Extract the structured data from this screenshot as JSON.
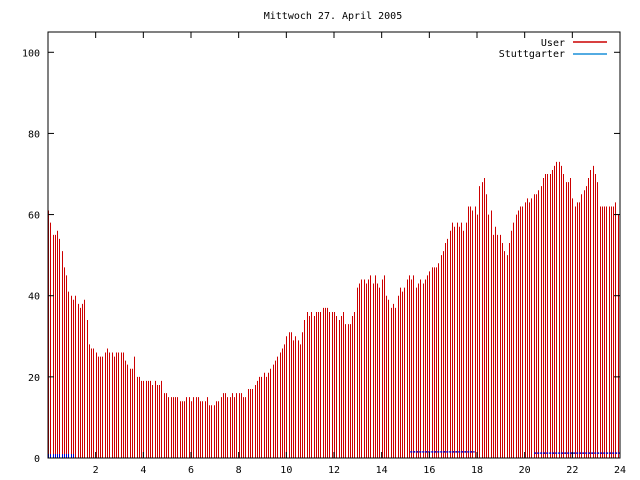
{
  "chart_data": {
    "type": "bar",
    "title": "Mittwoch 27. April 2005",
    "xlim": [
      0,
      24
    ],
    "ylim": [
      0,
      105
    ],
    "x_ticks": [
      2,
      4,
      6,
      8,
      10,
      12,
      14,
      16,
      18,
      20,
      22,
      24
    ],
    "y_ticks": [
      0,
      20,
      40,
      60,
      80,
      100
    ],
    "x_step_hours": 0.0833,
    "legend_position": "top-right",
    "grid": false,
    "series": [
      {
        "name": "User",
        "color": "#cc0000",
        "values": [
          61,
          58,
          55,
          55,
          56,
          54,
          51,
          47,
          45,
          41,
          40,
          39,
          40,
          38,
          37,
          38,
          39,
          34,
          28,
          27,
          27,
          26,
          25,
          25,
          25,
          26,
          27,
          26,
          26,
          25,
          26,
          26,
          26,
          26,
          24,
          23,
          22,
          22,
          25,
          20,
          20,
          19,
          19,
          19,
          19,
          19,
          18,
          19,
          18,
          18,
          19,
          16,
          16,
          15,
          15,
          15,
          15,
          15,
          14,
          14,
          14,
          15,
          15,
          14,
          15,
          15,
          15,
          14,
          14,
          14,
          15,
          13,
          13,
          13,
          14,
          14,
          15,
          16,
          16,
          15,
          15,
          16,
          15,
          16,
          16,
          16,
          15,
          15,
          17,
          17,
          17,
          18,
          19,
          20,
          20,
          21,
          20,
          21,
          22,
          23,
          24,
          25,
          26,
          27,
          28,
          30,
          31,
          31,
          29,
          30,
          29,
          28,
          31,
          34,
          36,
          35,
          36,
          35,
          36,
          36,
          36,
          37,
          37,
          37,
          36,
          36,
          36,
          35,
          34,
          35,
          36,
          33,
          33,
          33,
          35,
          36,
          42,
          43,
          44,
          44,
          43,
          44,
          45,
          43,
          45,
          43,
          42,
          44,
          45,
          40,
          39,
          37,
          38,
          37,
          40,
          42,
          41,
          42,
          44,
          45,
          44,
          45,
          42,
          43,
          44,
          43,
          44,
          45,
          46,
          47,
          47,
          47,
          48,
          50,
          51,
          53,
          54,
          56,
          58,
          57,
          58,
          57,
          58,
          56,
          58,
          62,
          62,
          61,
          62,
          60,
          67,
          68,
          69,
          65,
          60,
          61,
          55,
          57,
          55,
          55,
          53,
          51,
          50,
          53,
          56,
          58,
          60,
          61,
          62,
          62,
          63,
          64,
          63,
          64,
          65,
          65,
          66,
          67,
          69,
          70,
          70,
          70,
          71,
          72,
          73,
          73,
          72,
          70,
          68,
          68,
          69,
          64,
          62,
          63,
          63,
          65,
          66,
          67,
          69,
          71,
          72,
          70,
          68,
          62,
          62,
          62,
          62,
          62,
          62,
          62,
          63,
          60
        ]
      },
      {
        "name": "Stuttgarter",
        "color": "#0000cc",
        "values": [
          1,
          1,
          1,
          1,
          1,
          1,
          1,
          1,
          1,
          1,
          1,
          1,
          0,
          0,
          0,
          0,
          0,
          0,
          0,
          0,
          0,
          0,
          0,
          0,
          0,
          0,
          0,
          0,
          0,
          0,
          0,
          0,
          0,
          0,
          0,
          0,
          0,
          0,
          0,
          0,
          0,
          0,
          0,
          0,
          0,
          0,
          0,
          0,
          0,
          0,
          0,
          0,
          0,
          0,
          0,
          0,
          0,
          0,
          0,
          0,
          0,
          0,
          0,
          0,
          0,
          0,
          0,
          0,
          0,
          0,
          0,
          0,
          0,
          0,
          0,
          0,
          0,
          0,
          0,
          0,
          0,
          0,
          0,
          0,
          0,
          0,
          0,
          0,
          0,
          0,
          0,
          0,
          0,
          0,
          0,
          0,
          0,
          0,
          0,
          0,
          0,
          0,
          0,
          0,
          0,
          0,
          0,
          0,
          0,
          0,
          0,
          0,
          0,
          0,
          0,
          0,
          0,
          0,
          0,
          0,
          0,
          0,
          0,
          0,
          0,
          0,
          0,
          0,
          0,
          0,
          0,
          0,
          0,
          0,
          0,
          0,
          0,
          0,
          0,
          0,
          0,
          0,
          0,
          0,
          0,
          0,
          0,
          0,
          0,
          0,
          0,
          0,
          0,
          0,
          0,
          0,
          0,
          0,
          0,
          0,
          0,
          0,
          0,
          0,
          0,
          0,
          0,
          0,
          0,
          0,
          0,
          0,
          0,
          0,
          0,
          0,
          0,
          0,
          0,
          0,
          0,
          0,
          0,
          0,
          0,
          0,
          0,
          0,
          0,
          0,
          0,
          0,
          0,
          0,
          0,
          0,
          0,
          0,
          0,
          0,
          0,
          0,
          0,
          0,
          0,
          0,
          0,
          0,
          0,
          0,
          0,
          0,
          0,
          0,
          0,
          0,
          0,
          0,
          0,
          0,
          0,
          0,
          0,
          0,
          0,
          0,
          0,
          0,
          0,
          0,
          0,
          0,
          0,
          0,
          0,
          0,
          0,
          0,
          0,
          0,
          0,
          0,
          0,
          0,
          0,
          0,
          0,
          0,
          0,
          0,
          0,
          0,
          0,
          0,
          0,
          0,
          0,
          0,
          0,
          0,
          0,
          0,
          0,
          0,
          0,
          0,
          0,
          0,
          0,
          0,
          0,
          0,
          0
        ]
      }
    ],
    "stuttgarter_low_segments": [
      {
        "x": [
          15.2,
          17.9
        ],
        "y": 1.5
      },
      {
        "x": [
          20.4,
          24.0
        ],
        "y": 1.2
      }
    ]
  }
}
